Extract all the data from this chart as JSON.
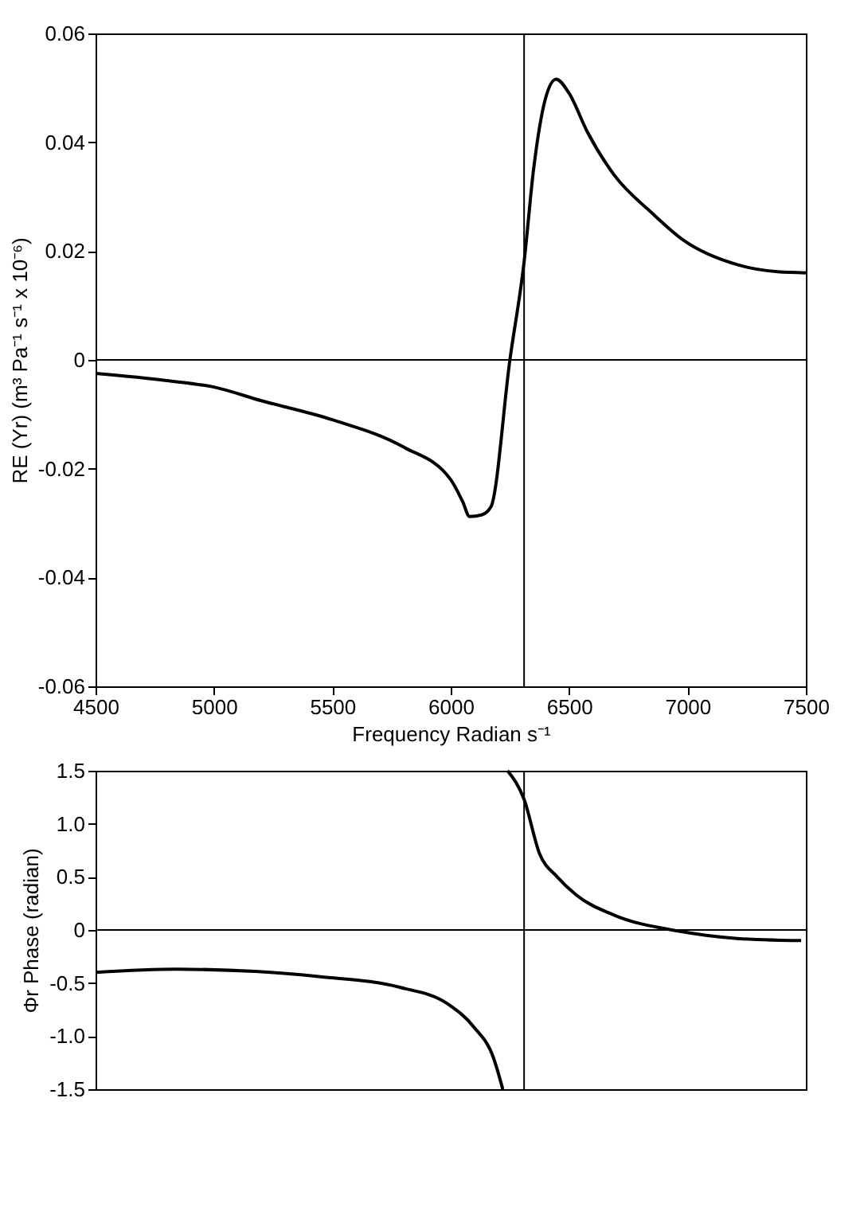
{
  "chart_data": [
    {
      "type": "line",
      "xlabel": "Frequency Radian s⁻¹",
      "ylabel": "RE (Yr) (m³ Pa⁻¹ s⁻¹ x 10⁻⁶)",
      "xlim": [
        4500,
        7500
      ],
      "xticks": [
        4500,
        5000,
        5500,
        6000,
        6500,
        7000,
        7500
      ],
      "ylim": [
        -0.06,
        0.06
      ],
      "yticks": [
        0.06,
        0.04,
        0.02,
        0,
        -0.02,
        -0.04,
        -0.06
      ],
      "grid": false,
      "legend": false,
      "marker": "none",
      "line_style": "solid",
      "ref_lines": [
        {
          "axis": "x",
          "value": 6310,
          "color": "#000000"
        },
        {
          "axis": "y",
          "value": 0,
          "color": "#000000"
        }
      ],
      "series": [
        {
          "color": "#000000",
          "x": [
            4500,
            4800,
            5000,
            5200,
            5500,
            5800,
            6000,
            6050,
            6080,
            6130,
            6170,
            6250,
            6310,
            6350,
            6400,
            6445,
            6500,
            6576,
            6690,
            6850,
            6983,
            7210,
            7380,
            7500
          ],
          "values": [
            -0.0025,
            -0.0038,
            -0.005,
            -0.0075,
            -0.011,
            -0.016,
            -0.022,
            -0.026,
            -0.0288,
            -0.0285,
            -0.027,
            0.0,
            0.018,
            0.035,
            0.048,
            0.0516,
            0.049,
            0.042,
            0.034,
            0.027,
            0.022,
            0.0175,
            0.0162,
            0.016
          ]
        }
      ]
    },
    {
      "type": "line",
      "ylabel": "Φr Phase (radian)",
      "tick_labels": "y",
      "xlim": [
        4500,
        7500
      ],
      "ylim": [
        -1.5,
        1.5
      ],
      "yticks": [
        1.5,
        {
          "value": 1,
          "label": "1.0"
        },
        0.5,
        0,
        -0.5,
        {
          "value": -1,
          "label": "-1.0"
        },
        -1.5
      ],
      "grid": false,
      "legend": false,
      "marker": "none",
      "line_style": "solid",
      "ref_lines": [
        {
          "axis": "x",
          "value": 6310,
          "color": "#000000"
        },
        {
          "axis": "y",
          "value": 0,
          "color": "#000000"
        }
      ],
      "series": [
        {
          "color": "#000000",
          "x": [
            4500,
            4840,
            5175,
            5450,
            5785,
            5990,
            6100,
            6180,
            6220
          ],
          "values": [
            -0.4,
            -0.37,
            -0.39,
            -0.44,
            -0.54,
            -0.7,
            -0.92,
            -1.2,
            -1.5
          ]
        },
        {
          "color": "#000000",
          "x": [
            6240,
            6310,
            6375,
            6450,
            6530,
            6690,
            6960,
            7210,
            7480
          ],
          "values": [
            1.5,
            1.23,
            0.72,
            0.5,
            0.33,
            0.14,
            -0.01,
            -0.08,
            -0.1
          ]
        }
      ]
    }
  ]
}
